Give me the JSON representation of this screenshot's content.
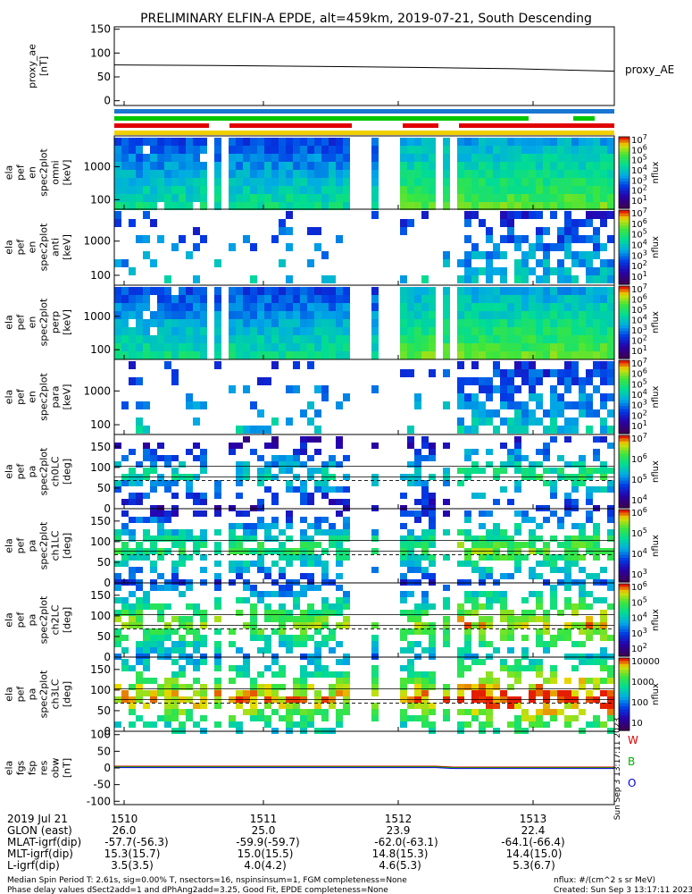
{
  "title": "PRELIMINARY ELFIN-A EPDE, alt=459km, 2019-07-21, South Descending",
  "colors": {
    "bar_blue": "#1976d2",
    "bar_green": "#00c800",
    "bar_red": "#e00000",
    "bar_yellow": "#f0d000",
    "line_black": "#000000",
    "mag_red": "#e00000",
    "mag_green": "#00b000",
    "mag_blue": "#0000e0"
  },
  "chart_data": [
    {
      "type": "line",
      "panel": "proxy_ae",
      "ylabel_lines": [
        "proxy_ae",
        "[nT]"
      ],
      "yticks": [
        "150",
        "100",
        "50",
        "0"
      ],
      "ylim": [
        -10,
        155
      ],
      "legend": "proxy_AE",
      "series": [
        {
          "name": "proxy_AE",
          "x": [
            0,
            0.2,
            0.4,
            0.6,
            0.8,
            1.0
          ],
          "values": [
            75,
            74,
            72,
            70,
            67,
            62
          ]
        }
      ]
    },
    {
      "type": "heatmap",
      "panel": "energy spectrogram 1",
      "ylabel_lines": [
        "ela",
        "pef",
        "en",
        "spec2plot",
        "omni",
        "[keV]"
      ],
      "yticks": [
        "1000",
        "100"
      ],
      "zlabel": "nflux",
      "zticks": [
        "10^7",
        "10^6",
        "10^5",
        "10^4",
        "10^3",
        "10^2",
        "10^1"
      ],
      "zscale": "log"
    },
    {
      "type": "heatmap",
      "panel": "energy spectrogram 2",
      "ylabel_lines": [
        "ela",
        "pef",
        "en",
        "spec2plot",
        "anti",
        "[keV]"
      ],
      "yticks": [
        "1000",
        "100"
      ],
      "zlabel": "nflux",
      "zticks": [
        "10^7",
        "10^6",
        "10^5",
        "10^4",
        "10^3",
        "10^2",
        "10^1"
      ],
      "zscale": "log"
    },
    {
      "type": "heatmap",
      "panel": "energy spectrogram 3",
      "ylabel_lines": [
        "ela",
        "pef",
        "en",
        "spec2plot",
        "perp",
        "[keV]"
      ],
      "yticks": [
        "1000",
        "100"
      ],
      "zlabel": "nflux",
      "zticks": [
        "10^7",
        "10^6",
        "10^5",
        "10^4",
        "10^3",
        "10^2",
        "10^1"
      ],
      "zscale": "log"
    },
    {
      "type": "heatmap",
      "panel": "energy spectrogram 4",
      "ylabel_lines": [
        "ela",
        "pef",
        "en",
        "spec2plot",
        "para",
        "[keV]"
      ],
      "yticks": [
        "1000",
        "100"
      ],
      "zlabel": "nflux",
      "zticks": [
        "10^7",
        "10^6",
        "10^5",
        "10^4",
        "10^3",
        "10^2",
        "10^1"
      ],
      "zscale": "log"
    },
    {
      "type": "heatmap",
      "panel": "pitch angle ch0",
      "ylabel_lines": [
        "ela",
        "pef",
        "pa",
        "spec2plot",
        "ch0LC",
        "[deg]"
      ],
      "yticks": [
        "150",
        "100",
        "50",
        "0"
      ],
      "ylim": [
        0,
        180
      ],
      "zlabel": "nflux",
      "zticks": [
        "10^7",
        "10^6",
        "10^5",
        "10^4"
      ],
      "zscale": "log"
    },
    {
      "type": "heatmap",
      "panel": "pitch angle ch1",
      "ylabel_lines": [
        "ela",
        "pef",
        "pa",
        "spec2plot",
        "ch1LC",
        "[deg]"
      ],
      "yticks": [
        "150",
        "100",
        "50",
        "0"
      ],
      "ylim": [
        0,
        180
      ],
      "zlabel": "nflux",
      "zticks": [
        "10^6",
        "10^5",
        "10^4",
        "10^3"
      ],
      "zscale": "log"
    },
    {
      "type": "heatmap",
      "panel": "pitch angle ch2",
      "ylabel_lines": [
        "ela",
        "pef",
        "pa",
        "spec2plot",
        "ch2LC",
        "[deg]"
      ],
      "yticks": [
        "150",
        "100",
        "50",
        "0"
      ],
      "ylim": [
        0,
        180
      ],
      "zlabel": "nflux",
      "zticks": [
        "10^6",
        "10^5",
        "10^4",
        "10^3",
        "10^2"
      ],
      "zscale": "log"
    },
    {
      "type": "heatmap",
      "panel": "pitch angle ch3",
      "ylabel_lines": [
        "ela",
        "pef",
        "pa",
        "spec2plot",
        "ch3LC",
        "[deg]"
      ],
      "yticks": [
        "150",
        "100",
        "50",
        "0"
      ],
      "ylim": [
        0,
        180
      ],
      "zlabel": "nflux",
      "zticks": [
        "10000",
        "1000",
        "100",
        "10"
      ],
      "zscale": "log"
    },
    {
      "type": "line",
      "panel": "fgs residual",
      "ylabel_lines": [
        "ela",
        "fgs",
        "fsp",
        "res",
        "obw",
        "[nT]"
      ],
      "yticks": [
        "100",
        "50",
        "0",
        "-50",
        "-100"
      ],
      "ylim": [
        -110,
        110
      ],
      "legend_labels": [
        "W",
        "B",
        "O"
      ],
      "stamp": "Sun Sep  3 13:17:11 2023"
    }
  ],
  "ephemeris": {
    "row_labels": [
      "2019 Jul 21",
      "GLON (east)",
      "MLAT-igrf(dip)",
      "MLT-igrf(dip)",
      "L-igrf(dip)"
    ],
    "columns": [
      {
        "time": "1510",
        "glon": "26.0",
        "mlat": "-57.7(-56.3)",
        "mlt": "15.3(15.7)",
        "l": "3.5(3.5)"
      },
      {
        "time": "1511",
        "glon": "25.0",
        "mlat": "-59.9(-59.7)",
        "mlt": "15.0(15.5)",
        "l": "4.0(4.2)"
      },
      {
        "time": "1512",
        "glon": "23.9",
        "mlat": "-62.0(-63.1)",
        "mlt": "14.8(15.3)",
        "l": "4.6(5.3)"
      },
      {
        "time": "1513",
        "glon": "22.4",
        "mlat": "-64.1(-66.4)",
        "mlt": "14.4(15.0)",
        "l": "5.3(6.7)"
      }
    ]
  },
  "footer": {
    "line1": "Median Spin Period T: 2.61s, sig=0.00% T, nsectors=16, nspinsinsum=1, FGM completeness=None",
    "line2": "Phase delay values dSect2add=1 and dPhAng2add=3.25, Good Fit, EPDE completeness=None",
    "units": "nflux: #/(cm^2 s sr MeV)",
    "created": "Created: Sun Sep  3 13:17:11 2023"
  }
}
